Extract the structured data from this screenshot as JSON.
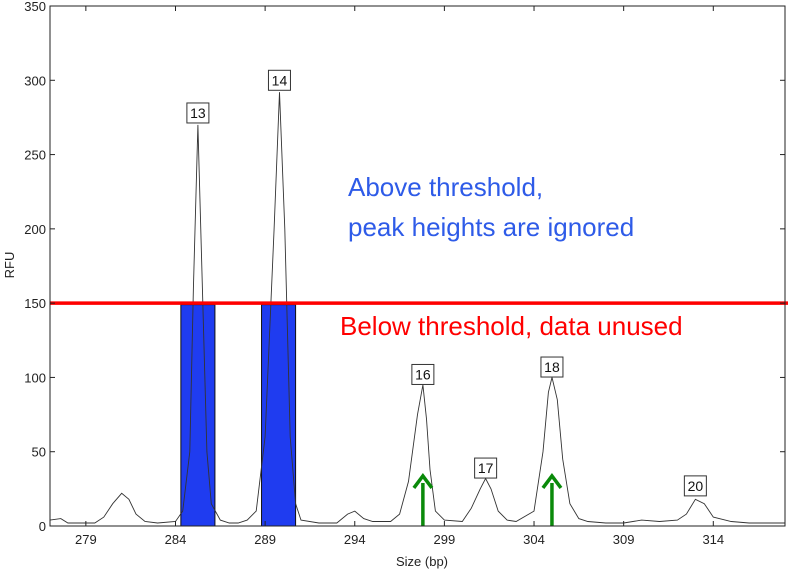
{
  "chart_data": {
    "type": "line",
    "xlabel": "Size (bp)",
    "ylabel": "RFU",
    "xlim": [
      277,
      318
    ],
    "ylim": [
      0,
      350
    ],
    "x_ticks": [
      "279",
      "284",
      "289",
      "294",
      "299",
      "304",
      "309",
      "314"
    ],
    "y_ticks": [
      "0",
      "50",
      "100",
      "150",
      "200",
      "250",
      "300",
      "350"
    ],
    "threshold": 150,
    "threshold_color": "#ff0000",
    "bar_color": "#1f3cf0",
    "arrow_color": "#0a8a0a",
    "series": [
      {
        "x": [
          277,
          277.6,
          278,
          279,
          279.5,
          280,
          280.5,
          281,
          281.4,
          281.8,
          282.3,
          283,
          284,
          284.4,
          284.8,
          285,
          285.25,
          285.5,
          285.75,
          286,
          286.5,
          287,
          287.5,
          288,
          288.5,
          289,
          289.5,
          289.8,
          290.1,
          290.4,
          290.7,
          291,
          292,
          293,
          293.6,
          294,
          294.5,
          295,
          296,
          296.5,
          297,
          297.5,
          297.8,
          298,
          298.2,
          298.5,
          299,
          300,
          300.5,
          301,
          301.3,
          301.6,
          302,
          302.5,
          303,
          304,
          304.5,
          304.8,
          305,
          305.3,
          305.6,
          306,
          306.5,
          307,
          308,
          309,
          310,
          311,
          312,
          312.5,
          313,
          313.5,
          314,
          315,
          316,
          318
        ],
        "y": [
          4,
          5,
          2,
          2,
          2,
          6,
          15,
          22,
          18,
          8,
          3,
          2,
          3,
          10,
          50,
          160,
          270,
          160,
          50,
          15,
          4,
          2,
          2,
          4,
          10,
          60,
          200,
          292,
          200,
          60,
          15,
          4,
          2,
          2,
          8,
          10,
          5,
          3,
          3,
          8,
          30,
          75,
          95,
          72,
          38,
          10,
          4,
          3,
          12,
          25,
          32,
          25,
          10,
          4,
          3,
          10,
          50,
          90,
          100,
          85,
          45,
          15,
          5,
          3,
          2,
          2,
          4,
          3,
          4,
          8,
          18,
          15,
          6,
          3,
          2,
          2
        ]
      }
    ],
    "bars": [
      {
        "x_from": 284.3,
        "x_to": 286.2,
        "value": 149
      },
      {
        "x_from": 288.8,
        "x_to": 290.7,
        "value": 149
      }
    ],
    "peak_labels": [
      {
        "text": "13",
        "x": 285.25,
        "y": 278
      },
      {
        "text": "14",
        "x": 289.8,
        "y": 300
      },
      {
        "text": "16",
        "x": 297.8,
        "y": 102
      },
      {
        "text": "17",
        "x": 301.3,
        "y": 39
      },
      {
        "text": "18",
        "x": 305.0,
        "y": 107
      },
      {
        "text": "20",
        "x": 313.0,
        "y": 27
      }
    ],
    "arrows": [
      {
        "x": 297.8,
        "y_from": 0,
        "y_to": 33
      },
      {
        "x": 305.0,
        "y_from": 0,
        "y_to": 33
      }
    ],
    "annotations": {
      "above_line1": "Above threshold,",
      "above_line2": "peak heights are ignored",
      "above_color": "#2e5be8",
      "below": "Below threshold, data unused",
      "below_color": "#ff0000"
    }
  }
}
